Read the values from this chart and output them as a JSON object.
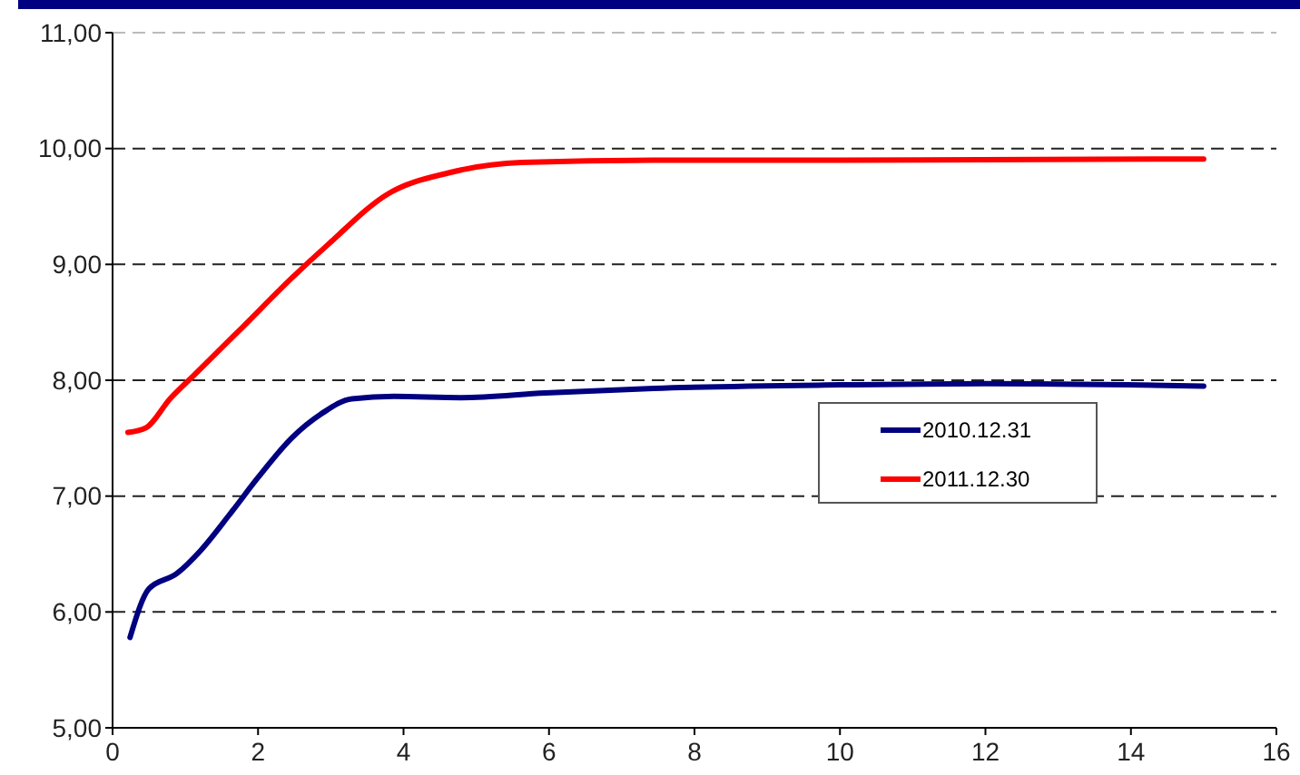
{
  "chart_data": {
    "type": "line",
    "xlim": [
      0,
      16
    ],
    "xticks": [
      0,
      2,
      4,
      6,
      8,
      10,
      12,
      14,
      16
    ],
    "ylim": [
      5,
      11
    ],
    "yticks": [
      {
        "value": 5,
        "label": "5,00"
      },
      {
        "value": 6,
        "label": "6,00"
      },
      {
        "value": 7,
        "label": "7,00"
      },
      {
        "value": 8,
        "label": "8,00"
      },
      {
        "value": 9,
        "label": "9,00"
      },
      {
        "value": 10,
        "label": "10,00"
      },
      {
        "value": 11,
        "label": "11,00"
      }
    ],
    "grid": "y",
    "legend": "right",
    "line_style": "solid",
    "marker": "none",
    "series": [
      {
        "name": "2010.12.31",
        "color": "#000080",
        "x": [
          0.24,
          0.5,
          0.88,
          1.21,
          1.62,
          2.0,
          2.46,
          2.87,
          3.29,
          3.87,
          4.78,
          5.95,
          7.44,
          10,
          12,
          15
        ],
        "values": [
          5.78,
          6.2,
          6.33,
          6.53,
          6.85,
          7.16,
          7.5,
          7.71,
          7.84,
          7.86,
          7.85,
          7.89,
          7.93,
          7.96,
          7.97,
          7.95
        ]
      },
      {
        "name": "2011.12.30",
        "color": "#ff0000",
        "x": [
          0.21,
          0.46,
          0.79,
          1.13,
          1.79,
          2.46,
          2.96,
          3.79,
          4.62,
          5.62,
          7.44,
          10,
          15
        ],
        "values": [
          7.55,
          7.59,
          7.84,
          8.05,
          8.46,
          8.88,
          9.17,
          9.61,
          9.79,
          9.88,
          9.9,
          9.9,
          9.91
        ]
      }
    ]
  }
}
